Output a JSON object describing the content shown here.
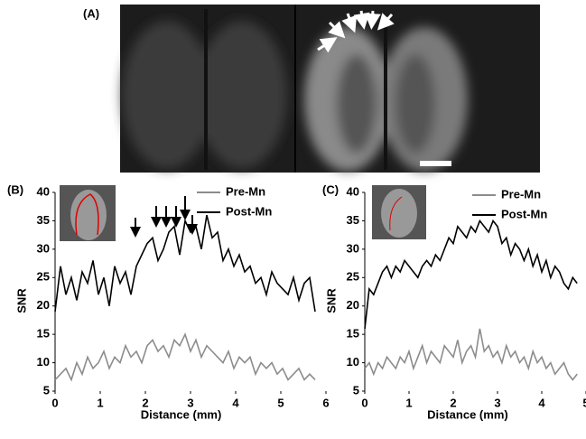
{
  "panel_a_label": "(A)",
  "chart_data": [
    {
      "type": "line",
      "panel_label": "(B)",
      "ylabel": "SNR",
      "xlabel": "Distance (mm)",
      "xlim": [
        0,
        6
      ],
      "xticks": [
        0,
        1,
        2,
        3,
        4,
        5,
        6
      ],
      "ylim": [
        5,
        40
      ],
      "yticks": [
        5,
        10,
        15,
        20,
        25,
        30,
        35,
        40
      ],
      "x": [
        0,
        0.12,
        0.24,
        0.36,
        0.48,
        0.6,
        0.72,
        0.84,
        0.96,
        1.08,
        1.2,
        1.32,
        1.44,
        1.56,
        1.68,
        1.8,
        1.92,
        2.04,
        2.16,
        2.28,
        2.4,
        2.52,
        2.64,
        2.76,
        2.88,
        3,
        3.12,
        3.24,
        3.36,
        3.48,
        3.6,
        3.72,
        3.84,
        3.96,
        4.08,
        4.2,
        4.32,
        4.44,
        4.56,
        4.68,
        4.8,
        4.92,
        5.04,
        5.16,
        5.28,
        5.4,
        5.52,
        5.64,
        5.76
      ],
      "series": [
        {
          "name": "Pre-Mn",
          "color": "#8c8c8c",
          "values": [
            7,
            8,
            9,
            7,
            10,
            8,
            11,
            9,
            10,
            12,
            9,
            11,
            10,
            13,
            11,
            12,
            10,
            13,
            14,
            12,
            13,
            11,
            14,
            13,
            15,
            12,
            14,
            11,
            13,
            12,
            11,
            10,
            12,
            9,
            11,
            10,
            11,
            8,
            10,
            9,
            10,
            8,
            9,
            7,
            8,
            9,
            7,
            8,
            7
          ]
        },
        {
          "name": "Post-Mn",
          "color": "#000000",
          "values": [
            19,
            27,
            22,
            25,
            21,
            26,
            24,
            28,
            22,
            25,
            20,
            27,
            24,
            26,
            22,
            27,
            29,
            31,
            32,
            28,
            30,
            33,
            34,
            29,
            35,
            33,
            34,
            30,
            36,
            32,
            33,
            28,
            30,
            27,
            29,
            26,
            27,
            24,
            25,
            22,
            26,
            24,
            23,
            22,
            25,
            21,
            24,
            25,
            19
          ]
        }
      ]
    },
    {
      "type": "line",
      "panel_label": "(C)",
      "ylabel": "SNR",
      "xlabel": "Distance (mm)",
      "xlim": [
        0,
        5
      ],
      "xticks": [
        0,
        1,
        2,
        3,
        4,
        5
      ],
      "ylim": [
        5,
        40
      ],
      "yticks": [
        5,
        10,
        15,
        20,
        25,
        30,
        35,
        40
      ],
      "x": [
        0,
        0.1,
        0.2,
        0.3,
        0.4,
        0.5,
        0.6,
        0.7,
        0.8,
        0.9,
        1,
        1.1,
        1.2,
        1.3,
        1.4,
        1.5,
        1.6,
        1.7,
        1.8,
        1.9,
        2,
        2.1,
        2.2,
        2.3,
        2.4,
        2.5,
        2.6,
        2.7,
        2.8,
        2.9,
        3,
        3.1,
        3.2,
        3.3,
        3.4,
        3.5,
        3.6,
        3.7,
        3.8,
        3.9,
        4,
        4.1,
        4.2,
        4.3,
        4.4,
        4.5,
        4.6,
        4.7,
        4.8
      ],
      "series": [
        {
          "name": "Pre-Mn",
          "color": "#8c8c8c",
          "values": [
            9,
            10,
            8,
            10,
            9,
            11,
            10,
            9,
            11,
            10,
            12,
            9,
            11,
            13,
            10,
            12,
            11,
            10,
            13,
            12,
            11,
            14,
            10,
            12,
            13,
            11,
            16,
            12,
            13,
            11,
            12,
            10,
            13,
            11,
            12,
            10,
            11,
            9,
            12,
            10,
            11,
            9,
            10,
            8,
            9,
            10,
            8,
            7,
            8
          ]
        },
        {
          "name": "Post-Mn",
          "color": "#000000",
          "values": [
            16,
            23,
            22,
            24,
            26,
            27,
            25,
            27,
            26,
            28,
            27,
            26,
            25,
            27,
            28,
            27,
            29,
            28,
            30,
            32,
            31,
            34,
            33,
            32,
            34,
            33,
            35,
            34,
            33,
            35,
            34,
            31,
            32,
            29,
            31,
            30,
            28,
            30,
            27,
            29,
            26,
            28,
            25,
            27,
            26,
            24,
            23,
            25,
            24
          ]
        }
      ]
    }
  ]
}
